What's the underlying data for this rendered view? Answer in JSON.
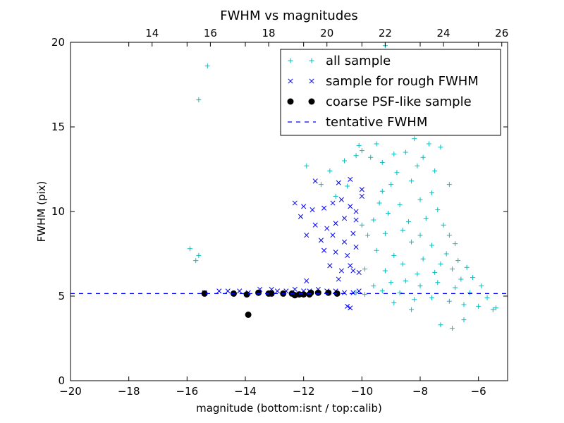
{
  "chart_data": {
    "type": "scatter",
    "title": "FWHM vs magnitudes",
    "xlabel": "magnitude (bottom:isnt / top:calib)",
    "ylabel": "FWHM (pix)",
    "xlim": [
      -20,
      -5
    ],
    "ylim": [
      0,
      20
    ],
    "x_ticks": [
      "−20",
      "−18",
      "−16",
      "−14",
      "−12",
      "−10",
      "−8",
      "−6"
    ],
    "x_tick_values": [
      -20,
      -18,
      -16,
      -14,
      -12,
      -10,
      -8,
      -6
    ],
    "y_ticks": [
      "0",
      "5",
      "10",
      "15",
      "20"
    ],
    "y_tick_values": [
      0,
      5,
      10,
      15,
      20
    ],
    "top_axis": {
      "offset": 31.2,
      "ticks": [
        "14",
        "16",
        "18",
        "20",
        "22",
        "24",
        "26"
      ],
      "tick_values": [
        14,
        16,
        18,
        20,
        22,
        24,
        26
      ]
    },
    "grid": false,
    "legend_position": "top-right",
    "series": [
      {
        "name": "all sample",
        "marker": "plus",
        "color": "#00bfbf",
        "points": [
          [
            -15.9,
            7.8
          ],
          [
            -15.7,
            7.1
          ],
          [
            -15.6,
            7.4
          ],
          [
            -15.6,
            16.6
          ],
          [
            -15.3,
            18.6
          ],
          [
            -11.9,
            12.7
          ],
          [
            -11.4,
            11.6
          ],
          [
            -11.1,
            12.4
          ],
          [
            -10.9,
            10.9
          ],
          [
            -10.6,
            13.0
          ],
          [
            -10.5,
            11.5
          ],
          [
            -10.2,
            13.3
          ],
          [
            -10.1,
            13.9
          ],
          [
            -10.0,
            13.6
          ],
          [
            -9.7,
            13.2
          ],
          [
            -9.5,
            14.0
          ],
          [
            -9.3,
            12.9
          ],
          [
            -9.2,
            19.8
          ],
          [
            -8.9,
            13.4
          ],
          [
            -8.5,
            13.5
          ],
          [
            -8.2,
            14.3
          ],
          [
            -7.9,
            13.2
          ],
          [
            -7.7,
            14.0
          ],
          [
            -7.3,
            13.8
          ],
          [
            -7.0,
            11.6
          ],
          [
            -7.6,
            11.1
          ],
          [
            -8.3,
            11.8
          ],
          [
            -9.0,
            11.6
          ],
          [
            -9.3,
            11.2
          ],
          [
            -8.7,
            10.4
          ],
          [
            -8.0,
            10.7
          ],
          [
            -7.4,
            10.1
          ],
          [
            -7.2,
            9.2
          ],
          [
            -9.6,
            9.5
          ],
          [
            -10.0,
            9.2
          ],
          [
            -9.8,
            8.6
          ],
          [
            -9.2,
            8.7
          ],
          [
            -8.4,
            9.4
          ],
          [
            -7.8,
            9.6
          ],
          [
            -7.0,
            8.6
          ],
          [
            -6.8,
            8.1
          ],
          [
            -9.5,
            7.7
          ],
          [
            -8.9,
            7.4
          ],
          [
            -8.3,
            8.2
          ],
          [
            -7.6,
            8.0
          ],
          [
            -7.1,
            7.5
          ],
          [
            -6.7,
            7.1
          ],
          [
            -6.4,
            6.7
          ],
          [
            -9.9,
            6.6
          ],
          [
            -9.2,
            6.5
          ],
          [
            -8.6,
            6.9
          ],
          [
            -8.1,
            6.3
          ],
          [
            -7.5,
            6.4
          ],
          [
            -6.9,
            6.6
          ],
          [
            -6.2,
            6.1
          ],
          [
            -5.9,
            5.6
          ],
          [
            -9.6,
            5.6
          ],
          [
            -9.0,
            5.8
          ],
          [
            -8.5,
            5.9
          ],
          [
            -8.0,
            5.6
          ],
          [
            -7.4,
            5.8
          ],
          [
            -6.8,
            5.5
          ],
          [
            -6.3,
            5.2
          ],
          [
            -5.7,
            4.9
          ],
          [
            -5.4,
            4.3
          ],
          [
            -5.5,
            4.2
          ],
          [
            -6.0,
            4.4
          ],
          [
            -6.5,
            4.5
          ],
          [
            -7.0,
            4.7
          ],
          [
            -7.6,
            4.9
          ],
          [
            -8.2,
            4.8
          ],
          [
            -8.7,
            5.2
          ],
          [
            -9.3,
            5.3
          ],
          [
            -7.3,
            3.3
          ],
          [
            -6.9,
            3.1
          ],
          [
            -6.5,
            3.6
          ],
          [
            -8.3,
            4.2
          ],
          [
            -8.9,
            4.6
          ],
          [
            -9.9,
            5.1
          ],
          [
            -10.2,
            5.2
          ],
          [
            -9.4,
            10.5
          ],
          [
            -8.8,
            12.3
          ],
          [
            -8.1,
            12.7
          ],
          [
            -7.5,
            12.4
          ],
          [
            -8.6,
            8.9
          ],
          [
            -7.9,
            7.2
          ],
          [
            -7.3,
            6.9
          ],
          [
            -6.6,
            6.0
          ],
          [
            -8.0,
            8.6
          ],
          [
            -9.1,
            9.9
          ]
        ]
      },
      {
        "name": "sample for rough FWHM",
        "marker": "x",
        "color": "#0000ff",
        "points": [
          [
            -15.4,
            5.2
          ],
          [
            -14.9,
            5.3
          ],
          [
            -14.6,
            5.3
          ],
          [
            -14.2,
            5.3
          ],
          [
            -13.9,
            5.2
          ],
          [
            -13.5,
            5.4
          ],
          [
            -13.1,
            5.4
          ],
          [
            -12.9,
            5.3
          ],
          [
            -12.6,
            5.3
          ],
          [
            -12.3,
            5.4
          ],
          [
            -12.0,
            5.3
          ],
          [
            -11.8,
            5.3
          ],
          [
            -11.5,
            5.4
          ],
          [
            -11.2,
            5.3
          ],
          [
            -10.9,
            5.3
          ],
          [
            -10.6,
            5.2
          ],
          [
            -10.3,
            5.2
          ],
          [
            -10.1,
            5.3
          ],
          [
            -12.3,
            10.5
          ],
          [
            -12.0,
            10.3
          ],
          [
            -11.7,
            10.1
          ],
          [
            -11.3,
            10.2
          ],
          [
            -11.0,
            10.5
          ],
          [
            -10.7,
            10.7
          ],
          [
            -10.4,
            10.3
          ],
          [
            -12.1,
            9.7
          ],
          [
            -11.6,
            9.2
          ],
          [
            -11.2,
            9.0
          ],
          [
            -10.9,
            9.3
          ],
          [
            -10.6,
            9.6
          ],
          [
            -10.2,
            10.0
          ],
          [
            -11.9,
            8.6
          ],
          [
            -11.4,
            8.3
          ],
          [
            -11.0,
            8.6
          ],
          [
            -10.6,
            8.2
          ],
          [
            -10.3,
            8.7
          ],
          [
            -11.3,
            7.7
          ],
          [
            -10.9,
            7.6
          ],
          [
            -10.5,
            7.4
          ],
          [
            -10.2,
            7.9
          ],
          [
            -11.1,
            6.8
          ],
          [
            -10.7,
            6.5
          ],
          [
            -10.4,
            6.8
          ],
          [
            -10.1,
            6.4
          ],
          [
            -11.9,
            5.9
          ],
          [
            -10.8,
            6.0
          ],
          [
            -10.4,
            4.3
          ],
          [
            -10.5,
            4.4
          ],
          [
            -11.6,
            11.8
          ],
          [
            -10.8,
            11.7
          ],
          [
            -10.4,
            11.9
          ],
          [
            -10.0,
            11.3
          ],
          [
            -10.0,
            10.9
          ],
          [
            -10.2,
            9.5
          ],
          [
            -10.3,
            6.5
          ]
        ]
      },
      {
        "name": "coarse PSF-like sample",
        "marker": "circle",
        "color": "#000000",
        "points": [
          [
            -15.4,
            5.15
          ],
          [
            -14.4,
            5.15
          ],
          [
            -13.95,
            5.1
          ],
          [
            -13.9,
            3.9
          ],
          [
            -13.55,
            5.2
          ],
          [
            -13.2,
            5.15
          ],
          [
            -13.1,
            5.15
          ],
          [
            -12.7,
            5.15
          ],
          [
            -12.4,
            5.15
          ],
          [
            -12.3,
            5.05
          ],
          [
            -12.15,
            5.1
          ],
          [
            -12.0,
            5.1
          ],
          [
            -11.8,
            5.1
          ],
          [
            -11.75,
            5.2
          ],
          [
            -11.5,
            5.2
          ],
          [
            -11.15,
            5.2
          ],
          [
            -10.85,
            5.15
          ]
        ]
      },
      {
        "name": "tentative FWHM",
        "marker": "dashed-line",
        "color": "#0000ff",
        "y": 5.15
      }
    ]
  }
}
